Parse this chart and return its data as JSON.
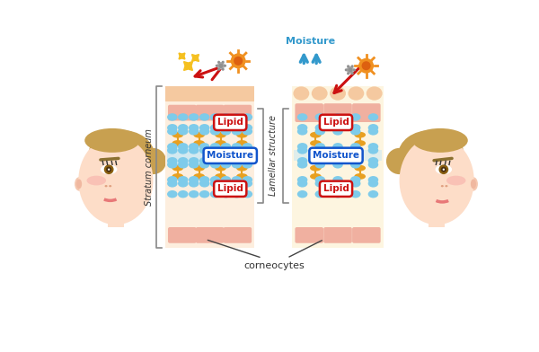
{
  "bg_color": "#ffffff",
  "skin_bg_healthy": "#fdeede",
  "skin_bg_dry": "#fdf5e0",
  "top_strip_healthy": "#f5c9a0",
  "cell_pink": "#f0b0a0",
  "lipid_blue": "#7ecbea",
  "lipid_orange": "#e8a020",
  "moisture_band": "#c8e8f5",
  "label_lipid_text": "#cc1111",
  "label_lipid_border": "#cc1111",
  "label_moisture_text": "#1155cc",
  "label_moisture_border": "#1155cc",
  "stratum_text": "Stratum corneum",
  "lamellar_text": "Lamellar structure",
  "corneocytes_text": "corneocytes",
  "moisture_label": "Moisture",
  "face_skin": "#fdddc8",
  "face_hair": "#c8a050",
  "face_blush": "#f5a0a0",
  "face_lip": "#e87878",
  "face_eye": "#8b6010",
  "sun_outer": "#f09020",
  "sun_inner": "#dd6010",
  "sparkle": "#f5c020",
  "gray_particle": "#909090",
  "red_arrow": "#cc1111",
  "blue_arrow": "#3399cc",
  "bracket_color": "#888888"
}
